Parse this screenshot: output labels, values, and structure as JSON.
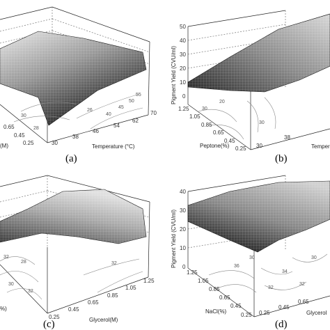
{
  "chart_data": [
    {
      "type": "surface",
      "panel_label": "(a)",
      "xlabel": "Temperature (°C)",
      "x_ticks": [
        "30",
        "38",
        "46",
        "54",
        "62",
        "70"
      ],
      "ylabel": "(M)",
      "y_ticks": [
        "0.25",
        "0.45",
        "0.65"
      ],
      "zlabel": "",
      "z_ticks": [],
      "contour_labels": [
        "30",
        "28",
        "26"
      ],
      "back_contour_labels": [
        "40",
        "45",
        "50",
        "55"
      ]
    },
    {
      "type": "surface",
      "panel_label": "(b)",
      "xlabel": "Temper",
      "x_ticks": [
        "30",
        "38"
      ],
      "ylabel": "Peptone(%)",
      "y_ticks": [
        "1.25",
        "1.05",
        "0.85",
        "0.65",
        "0.45",
        "0.25"
      ],
      "zlabel": "Pigment Yield (CVU/ml)",
      "z_ticks": [
        "0",
        "10",
        "20",
        "30",
        "40",
        "50"
      ],
      "contour_labels": [
        "30",
        "20",
        "30"
      ],
      "back_contour_labels": []
    },
    {
      "type": "surface",
      "panel_label": "(c)",
      "xlabel": "Glycerol(M)",
      "x_ticks": [
        "0.25",
        "0.45",
        "0.65",
        "0.85",
        "1.05",
        "1.25"
      ],
      "ylabel": "%)",
      "y_ticks": [],
      "zlabel": "",
      "z_ticks": [],
      "contour_labels": [
        "32",
        "28",
        "30",
        "32",
        "32"
      ],
      "back_contour_labels": []
    },
    {
      "type": "surface",
      "panel_label": "(d)",
      "xlabel": "Glycerol",
      "x_ticks": [
        "0.25",
        "0.45",
        "0.65"
      ],
      "ylabel": "NaCl(%)",
      "y_ticks": [
        "1.25",
        "1.05",
        "0.85",
        "0.65",
        "0.45",
        "0.25"
      ],
      "zlabel": "Pigment Yield (CVU/ml)",
      "z_ticks": [
        "0",
        "10",
        "20",
        "30",
        "40"
      ],
      "contour_labels": [
        "36",
        "30",
        "34",
        "32",
        "32",
        "30"
      ],
      "back_contour_labels": []
    }
  ]
}
